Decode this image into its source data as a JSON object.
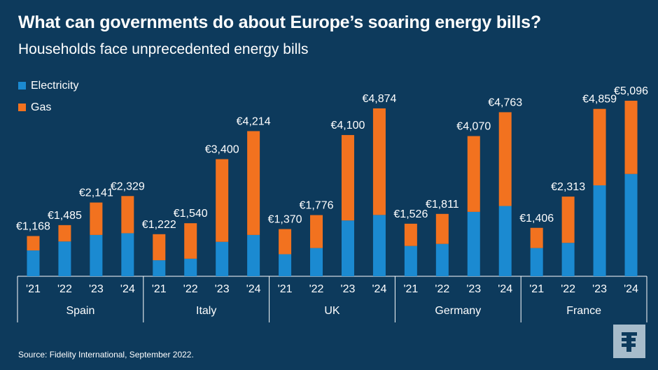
{
  "title": "What can governments do about Europe’s soaring energy bills?",
  "subtitle": "Households face unprecedented energy bills",
  "source": "Source: Fidelity International, September 2022.",
  "colors": {
    "background": "#0d3a5c",
    "electricity": "#1b8ad1",
    "gas": "#f2721f",
    "axis": "#ffffff"
  },
  "logo_icon": "fidelity-logo-icon",
  "chart_data": {
    "type": "bar",
    "stacked": true,
    "groups": [
      "Spain",
      "Italy",
      "UK",
      "Germany",
      "France"
    ],
    "categories": [
      "'21",
      "'22",
      "'23",
      "'24"
    ],
    "series": [
      {
        "name": "Electricity",
        "values": [
          [
            750,
            1010,
            1200,
            1250
          ],
          [
            465,
            510,
            1000,
            1200
          ],
          [
            640,
            820,
            1620,
            1780
          ],
          [
            880,
            940,
            1870,
            2040
          ],
          [
            820,
            970,
            2640,
            2970
          ]
        ]
      },
      {
        "name": "Gas",
        "values": [
          [
            418,
            475,
            941,
            1079
          ],
          [
            757,
            1030,
            2400,
            3014
          ],
          [
            730,
            956,
            2480,
            3094
          ],
          [
            646,
            871,
            2200,
            2723
          ],
          [
            586,
            1343,
            2219,
            2126
          ]
        ]
      }
    ],
    "totals": [
      [
        "€1,168",
        "€1,485",
        "€2,141",
        "€2,329"
      ],
      [
        "€1,222",
        "€1,540",
        "€3,400",
        "€4,214"
      ],
      [
        "€1,370",
        "€1,776",
        "€4,100",
        "€4,874"
      ],
      [
        "€1,526",
        "€1,811",
        "€4,070",
        "€4,763"
      ],
      [
        "€1,406",
        "€2,313",
        "€4,859",
        "€5,096"
      ]
    ],
    "ylim": [
      0,
      5500
    ],
    "legend_position": "top-left",
    "grid": false
  }
}
